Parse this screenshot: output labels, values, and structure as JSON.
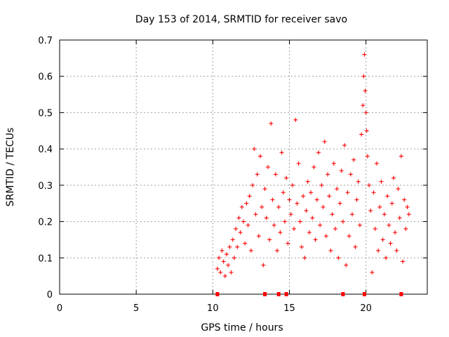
{
  "chart_data": {
    "type": "scatter",
    "title": "Day 153 of 2014, SRMTID for receiver savo",
    "xlabel": "GPS time / hours",
    "ylabel": "SRMTID / TECUs",
    "xlim": [
      0,
      24
    ],
    "ylim": [
      0,
      0.7
    ],
    "xticks": [
      0,
      5,
      10,
      15,
      20
    ],
    "yticks": [
      0,
      0.1,
      0.2,
      0.3,
      0.4,
      0.5,
      0.6,
      0.7
    ],
    "ytick_labels": [
      "0",
      "0.1",
      "0.2",
      "0.3",
      "0.4",
      "0.5",
      "0.6",
      "0.7"
    ],
    "grid": true,
    "marker": "+",
    "series_color": "#ff0000",
    "baseline_marks_x": [
      10.3,
      13.4,
      14.3,
      14.8,
      18.5,
      19.9,
      22.3
    ],
    "series": [
      {
        "name": "SRMTID",
        "points": [
          [
            10.3,
            0.07
          ],
          [
            10.4,
            0.1
          ],
          [
            10.5,
            0.06
          ],
          [
            10.6,
            0.12
          ],
          [
            10.7,
            0.09
          ],
          [
            10.8,
            0.05
          ],
          [
            10.9,
            0.11
          ],
          [
            11.0,
            0.08
          ],
          [
            11.1,
            0.13
          ],
          [
            11.2,
            0.06
          ],
          [
            11.3,
            0.15
          ],
          [
            11.4,
            0.1
          ],
          [
            11.5,
            0.18
          ],
          [
            11.6,
            0.13
          ],
          [
            11.7,
            0.21
          ],
          [
            11.8,
            0.17
          ],
          [
            11.9,
            0.24
          ],
          [
            12.0,
            0.2
          ],
          [
            12.1,
            0.14
          ],
          [
            12.2,
            0.25
          ],
          [
            12.3,
            0.19
          ],
          [
            12.4,
            0.27
          ],
          [
            12.5,
            0.12
          ],
          [
            12.6,
            0.3
          ],
          [
            12.7,
            0.4
          ],
          [
            12.8,
            0.22
          ],
          [
            12.9,
            0.33
          ],
          [
            13.0,
            0.16
          ],
          [
            13.1,
            0.38
          ],
          [
            13.2,
            0.24
          ],
          [
            13.3,
            0.08
          ],
          [
            13.4,
            0.29
          ],
          [
            13.5,
            0.21
          ],
          [
            13.6,
            0.35
          ],
          [
            13.7,
            0.15
          ],
          [
            13.8,
            0.47
          ],
          [
            13.9,
            0.26
          ],
          [
            14.0,
            0.19
          ],
          [
            14.1,
            0.33
          ],
          [
            14.2,
            0.12
          ],
          [
            14.3,
            0.24
          ],
          [
            14.4,
            0.17
          ],
          [
            14.5,
            0.39
          ],
          [
            14.6,
            0.28
          ],
          [
            14.7,
            0.2
          ],
          [
            14.8,
            0.32
          ],
          [
            14.9,
            0.14
          ],
          [
            15.0,
            0.26
          ],
          [
            15.1,
            0.22
          ],
          [
            15.2,
            0.3
          ],
          [
            15.3,
            0.18
          ],
          [
            15.4,
            0.48
          ],
          [
            15.5,
            0.25
          ],
          [
            15.6,
            0.36
          ],
          [
            15.7,
            0.2
          ],
          [
            15.8,
            0.13
          ],
          [
            15.9,
            0.27
          ],
          [
            16.0,
            0.1
          ],
          [
            16.1,
            0.23
          ],
          [
            16.2,
            0.31
          ],
          [
            16.3,
            0.17
          ],
          [
            16.4,
            0.28
          ],
          [
            16.5,
            0.21
          ],
          [
            16.6,
            0.35
          ],
          [
            16.7,
            0.15
          ],
          [
            16.8,
            0.26
          ],
          [
            16.9,
            0.39
          ],
          [
            17.0,
            0.19
          ],
          [
            17.1,
            0.3
          ],
          [
            17.2,
            0.24
          ],
          [
            17.3,
            0.42
          ],
          [
            17.4,
            0.16
          ],
          [
            17.5,
            0.33
          ],
          [
            17.6,
            0.27
          ],
          [
            17.7,
            0.12
          ],
          [
            17.8,
            0.22
          ],
          [
            17.9,
            0.36
          ],
          [
            18.0,
            0.18
          ],
          [
            18.1,
            0.29
          ],
          [
            18.2,
            0.1
          ],
          [
            18.3,
            0.25
          ],
          [
            18.4,
            0.34
          ],
          [
            18.5,
            0.2
          ],
          [
            18.6,
            0.41
          ],
          [
            18.7,
            0.08
          ],
          [
            18.8,
            0.28
          ],
          [
            18.9,
            0.16
          ],
          [
            19.0,
            0.33
          ],
          [
            19.1,
            0.22
          ],
          [
            19.2,
            0.37
          ],
          [
            19.3,
            0.13
          ],
          [
            19.4,
            0.26
          ],
          [
            19.5,
            0.31
          ],
          [
            19.6,
            0.19
          ],
          [
            19.7,
            0.44
          ],
          [
            19.8,
            0.52
          ],
          [
            19.85,
            0.6
          ],
          [
            19.9,
            0.66
          ],
          [
            19.95,
            0.56
          ],
          [
            20.0,
            0.5
          ],
          [
            20.05,
            0.45
          ],
          [
            20.1,
            0.38
          ],
          [
            20.2,
            0.3
          ],
          [
            20.3,
            0.23
          ],
          [
            20.4,
            0.06
          ],
          [
            20.5,
            0.28
          ],
          [
            20.6,
            0.18
          ],
          [
            20.7,
            0.36
          ],
          [
            20.8,
            0.12
          ],
          [
            20.9,
            0.24
          ],
          [
            21.0,
            0.31
          ],
          [
            21.1,
            0.15
          ],
          [
            21.2,
            0.22
          ],
          [
            21.3,
            0.1
          ],
          [
            21.4,
            0.27
          ],
          [
            21.5,
            0.19
          ],
          [
            21.6,
            0.14
          ],
          [
            21.7,
            0.25
          ],
          [
            21.8,
            0.32
          ],
          [
            21.9,
            0.17
          ],
          [
            22.0,
            0.12
          ],
          [
            22.1,
            0.29
          ],
          [
            22.2,
            0.21
          ],
          [
            22.3,
            0.38
          ],
          [
            22.4,
            0.09
          ],
          [
            22.5,
            0.26
          ],
          [
            22.6,
            0.18
          ],
          [
            22.7,
            0.24
          ],
          [
            22.8,
            0.22
          ]
        ]
      }
    ]
  }
}
